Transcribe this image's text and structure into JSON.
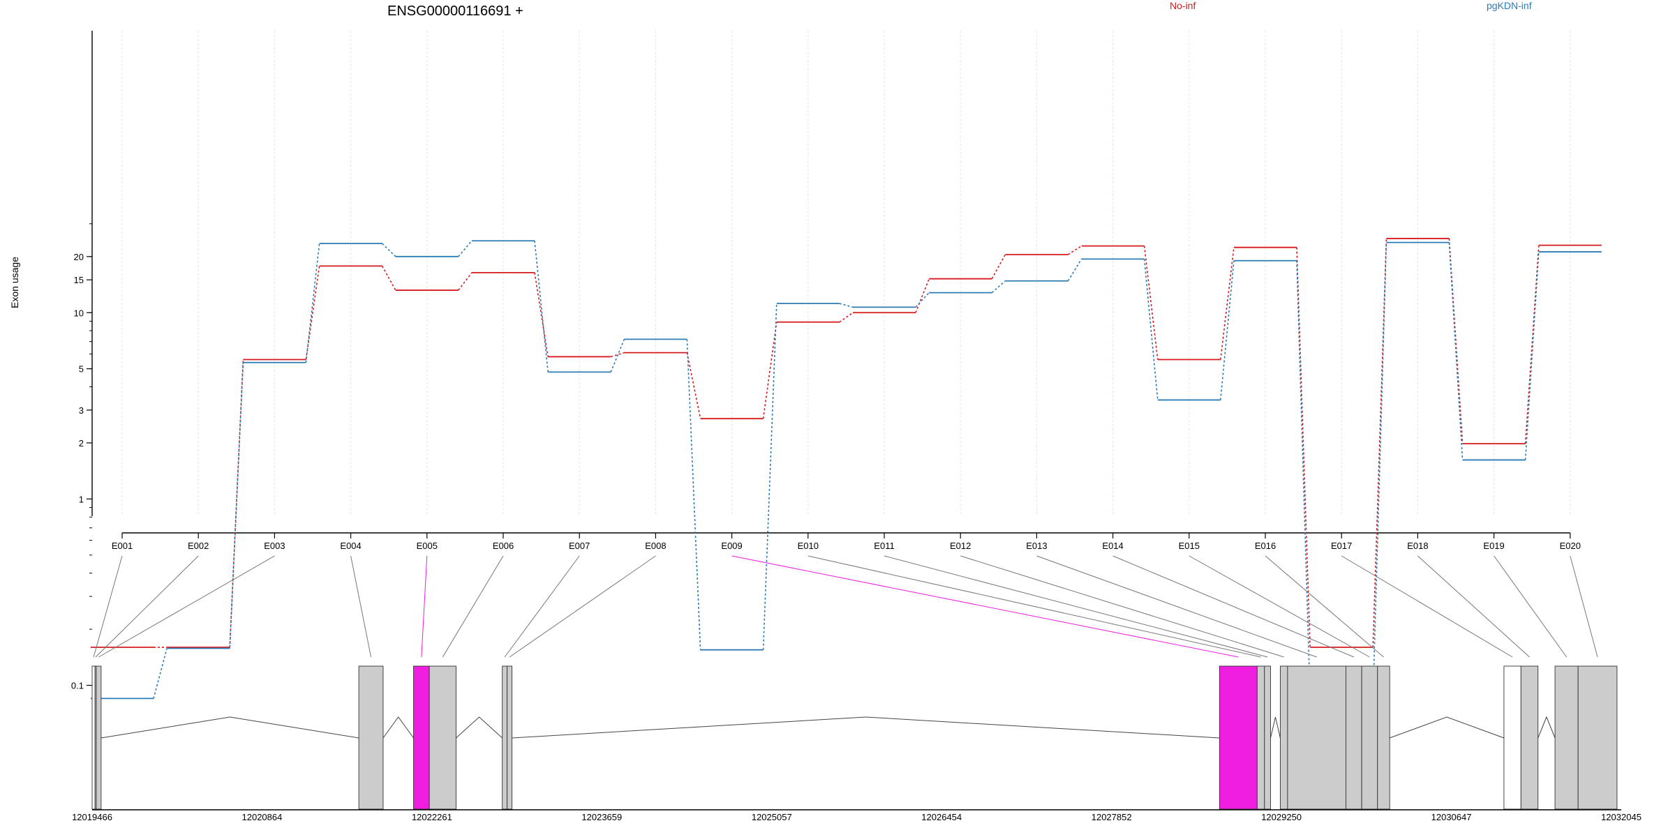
{
  "chart_data": {
    "type": "line",
    "title": "ENSG00000116691 +",
    "ylabel": "Exon usage",
    "y_scale": "log",
    "ylim": [
      0.08,
      30
    ],
    "yticks": [
      0.1,
      1,
      2,
      3,
      5,
      10,
      15,
      20
    ],
    "ytick_labels": [
      "0.1",
      "1",
      "2",
      "3",
      "5",
      "10",
      "15",
      "20"
    ],
    "categories": [
      "E001",
      "E002",
      "E003",
      "E004",
      "E005",
      "E006",
      "E007",
      "E008",
      "E009",
      "E010",
      "E011",
      "E012",
      "E013",
      "E014",
      "E015",
      "E016",
      "E017",
      "E018",
      "E019",
      "E020"
    ],
    "legend_position": "top",
    "grid": true,
    "series": [
      {
        "name": "No-inf",
        "color": "#d7191c",
        "values": [
          0.16,
          0.16,
          5.6,
          17.8,
          13.2,
          16.4,
          5.8,
          6.1,
          2.7,
          8.9,
          10.0,
          15.2,
          20.5,
          22.8,
          5.6,
          22.4,
          0.16,
          25.0,
          1.98,
          23.0
        ]
      },
      {
        "name": "pgKDN-inf",
        "color": "#2c7bb6",
        "values": [
          0.085,
          0.158,
          5.4,
          23.5,
          20.0,
          24.3,
          4.8,
          7.2,
          0.155,
          11.2,
          10.7,
          12.8,
          14.8,
          19.4,
          3.4,
          19.0,
          0.085,
          23.8,
          1.62,
          21.2
        ]
      }
    ]
  },
  "gene_model": {
    "start": 12019466,
    "end": 12032045,
    "axis_labels": [
      "12019466",
      "12020864",
      "12022261",
      "12023659",
      "12025057",
      "12026454",
      "12027852",
      "12029250",
      "12030647",
      "12032045"
    ],
    "highlight_color": "#f01ee0",
    "exon_color": "#cccccc",
    "exons": [
      {
        "id": "E001",
        "start": 12019466,
        "end": 12019490,
        "fill": "white"
      },
      {
        "id": "E002",
        "start": 12019490,
        "end": 12019500,
        "fill": "grey"
      },
      {
        "id": "E003",
        "start": 12019500,
        "end": 12019540,
        "fill": "grey"
      },
      {
        "id": "E004",
        "start": 12021660,
        "end": 12021860,
        "fill": "grey"
      },
      {
        "id": "E005",
        "start": 12022110,
        "end": 12022240,
        "fill": "pink"
      },
      {
        "id": "E006",
        "start": 12022240,
        "end": 12022460,
        "fill": "grey"
      },
      {
        "id": "E007",
        "start": 12022840,
        "end": 12022880,
        "fill": "grey"
      },
      {
        "id": "E008",
        "start": 12022880,
        "end": 12022920,
        "fill": "grey"
      },
      {
        "id": "E009",
        "start": 12028740,
        "end": 12029050,
        "fill": "pink"
      },
      {
        "id": "E010",
        "start": 12029050,
        "end": 12029110,
        "fill": "grey"
      },
      {
        "id": "E011",
        "start": 12029110,
        "end": 12029160,
        "fill": "grey"
      },
      {
        "id": "E012",
        "start": 12029240,
        "end": 12029300,
        "fill": "grey"
      },
      {
        "id": "E013",
        "start": 12029300,
        "end": 12029780,
        "fill": "grey"
      },
      {
        "id": "E014",
        "start": 12029780,
        "end": 12029910,
        "fill": "grey"
      },
      {
        "id": "E015",
        "start": 12029910,
        "end": 12030040,
        "fill": "grey"
      },
      {
        "id": "E016",
        "start": 12030040,
        "end": 12030140,
        "fill": "grey"
      },
      {
        "id": "E017",
        "start": 12031080,
        "end": 12031220,
        "fill": "white"
      },
      {
        "id": "E018",
        "start": 12031220,
        "end": 12031360,
        "fill": "grey"
      },
      {
        "id": "E019",
        "start": 12031500,
        "end": 12031690,
        "fill": "grey"
      },
      {
        "id": "E020",
        "start": 12031690,
        "end": 12032010,
        "fill": "grey"
      }
    ],
    "introns": [
      [
        12019540,
        12021660
      ],
      [
        12021860,
        12022110
      ],
      [
        12022460,
        12022840
      ],
      [
        12022920,
        12028740
      ],
      [
        12029160,
        12029240
      ],
      [
        12030140,
        12031080
      ],
      [
        12031360,
        12031500
      ]
    ]
  }
}
